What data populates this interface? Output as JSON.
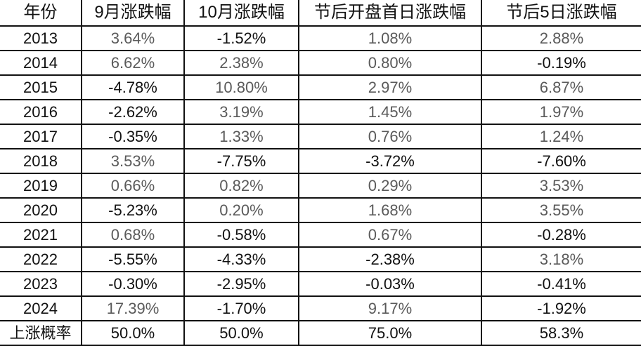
{
  "headers": [
    "年份",
    "9月涨跌幅",
    "10月涨跌幅",
    "节后开盘首日涨跌幅",
    "节后5日涨跌幅"
  ],
  "rows": [
    [
      "2013",
      "3.64%",
      "-1.52%",
      "1.08%",
      "2.88%"
    ],
    [
      "2014",
      "6.62%",
      "2.38%",
      "0.80%",
      "-0.19%"
    ],
    [
      "2015",
      "-4.78%",
      "10.80%",
      "2.97%",
      "6.87%"
    ],
    [
      "2016",
      "-2.62%",
      "3.19%",
      "1.45%",
      "1.97%"
    ],
    [
      "2017",
      "-0.35%",
      "1.33%",
      "0.76%",
      "1.24%"
    ],
    [
      "2018",
      "3.53%",
      "-7.75%",
      "-3.72%",
      "-7.60%"
    ],
    [
      "2019",
      "0.66%",
      "0.82%",
      "0.29%",
      "3.53%"
    ],
    [
      "2020",
      "-5.23%",
      "0.20%",
      "1.68%",
      "3.55%"
    ],
    [
      "2021",
      "0.68%",
      "-0.58%",
      "0.67%",
      "-0.28%"
    ],
    [
      "2022",
      "-5.55%",
      "-4.33%",
      "-2.38%",
      "3.18%"
    ],
    [
      "2023",
      "-0.30%",
      "-2.95%",
      "-0.03%",
      "-0.41%"
    ],
    [
      "2024",
      "17.39%",
      "-1.70%",
      "9.17%",
      "-1.92%"
    ]
  ],
  "summary": [
    "上涨概率",
    "50.0%",
    "50.0%",
    "75.0%",
    "58.3%"
  ],
  "colors": {
    "positive": "#5a5a5a",
    "negative": "#111111",
    "border": "#111111"
  }
}
